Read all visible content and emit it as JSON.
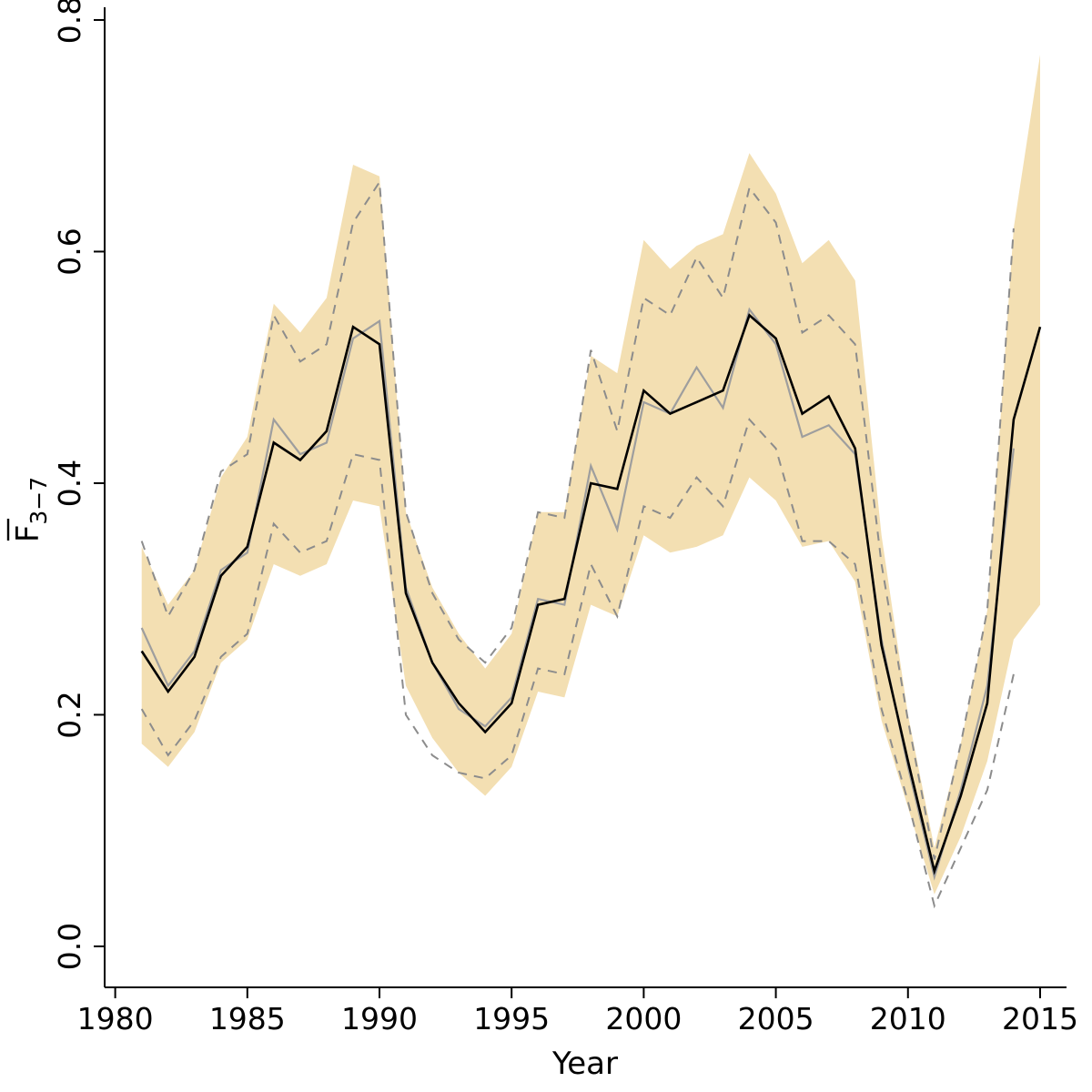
{
  "figure": {
    "background": "#ffffff"
  },
  "chart_data": {
    "type": "line",
    "title": "",
    "xlabel": "Year",
    "ylabel": {
      "main": "F",
      "sub": "3−7",
      "overline": true
    },
    "xlim": [
      1979.6,
      2016.0
    ],
    "ylim": [
      -0.0354,
      0.8094
    ],
    "grid": false,
    "legend": null,
    "x_ticks": [
      {
        "value": 1980,
        "label": "1980"
      },
      {
        "value": 1985,
        "label": "1985"
      },
      {
        "value": 1990,
        "label": "1990"
      },
      {
        "value": 1995,
        "label": "1995"
      },
      {
        "value": 2000,
        "label": "2000"
      },
      {
        "value": 2005,
        "label": "2005"
      },
      {
        "value": 2010,
        "label": "2010"
      },
      {
        "value": 2015,
        "label": "2015"
      }
    ],
    "y_ticks": [
      {
        "value": 0.0,
        "label": "0.0"
      },
      {
        "value": 0.2,
        "label": "0.2"
      },
      {
        "value": 0.4,
        "label": "0.4"
      },
      {
        "value": 0.6,
        "label": "0.6"
      },
      {
        "value": 0.8,
        "label": "0.8"
      }
    ],
    "band": {
      "name": "confidence-band",
      "color": "#f3dfb2",
      "x": [
        1981,
        1982,
        1983,
        1984,
        1985,
        1986,
        1987,
        1988,
        1989,
        1990,
        1991,
        1992,
        1993,
        1994,
        1995,
        1996,
        1997,
        1998,
        1999,
        2000,
        2001,
        2002,
        2003,
        2004,
        2005,
        2006,
        2007,
        2008,
        2009,
        2010,
        2011,
        2012,
        2013,
        2014,
        2015
      ],
      "upper": [
        0.345,
        0.295,
        0.325,
        0.405,
        0.44,
        0.555,
        0.53,
        0.56,
        0.675,
        0.665,
        0.375,
        0.31,
        0.27,
        0.24,
        0.27,
        0.375,
        0.375,
        0.51,
        0.495,
        0.61,
        0.585,
        0.605,
        0.615,
        0.685,
        0.65,
        0.59,
        0.61,
        0.575,
        0.355,
        0.2,
        0.085,
        0.175,
        0.29,
        0.62,
        0.77
      ],
      "lower": [
        0.175,
        0.155,
        0.185,
        0.245,
        0.265,
        0.33,
        0.32,
        0.33,
        0.385,
        0.38,
        0.225,
        0.18,
        0.15,
        0.13,
        0.155,
        0.22,
        0.215,
        0.295,
        0.285,
        0.355,
        0.34,
        0.345,
        0.355,
        0.405,
        0.385,
        0.345,
        0.35,
        0.315,
        0.195,
        0.12,
        0.045,
        0.095,
        0.16,
        0.265,
        0.295
      ]
    },
    "series": [
      {
        "name": "previous-upper-ci",
        "style": "dashed",
        "color": "#8c8c8c",
        "width": 2,
        "x": [
          1981,
          1982,
          1983,
          1984,
          1985,
          1986,
          1987,
          1988,
          1989,
          1990,
          1991,
          1992,
          1993,
          1994,
          1995,
          1996,
          1997,
          1998,
          1999,
          2000,
          2001,
          2002,
          2003,
          2004,
          2005,
          2006,
          2007,
          2008,
          2009,
          2010,
          2011,
          2012,
          2013,
          2014
        ],
        "values": [
          0.35,
          0.285,
          0.325,
          0.41,
          0.425,
          0.545,
          0.505,
          0.52,
          0.625,
          0.66,
          0.375,
          0.305,
          0.265,
          0.245,
          0.275,
          0.375,
          0.37,
          0.515,
          0.445,
          0.56,
          0.545,
          0.595,
          0.56,
          0.655,
          0.625,
          0.53,
          0.545,
          0.52,
          0.33,
          0.195,
          0.075,
          0.175,
          0.29,
          0.62
        ]
      },
      {
        "name": "previous-lower-ci",
        "style": "dashed",
        "color": "#8c8c8c",
        "width": 2,
        "x": [
          1981,
          1982,
          1983,
          1984,
          1985,
          1986,
          1987,
          1988,
          1989,
          1990,
          1991,
          1992,
          1993,
          1994,
          1995,
          1996,
          1997,
          1998,
          1999,
          2000,
          2001,
          2002,
          2003,
          2004,
          2005,
          2006,
          2007,
          2008,
          2009,
          2010,
          2011,
          2012,
          2013,
          2014
        ],
        "values": [
          0.205,
          0.165,
          0.195,
          0.25,
          0.27,
          0.365,
          0.34,
          0.35,
          0.425,
          0.42,
          0.2,
          0.165,
          0.15,
          0.145,
          0.165,
          0.24,
          0.235,
          0.33,
          0.285,
          0.38,
          0.37,
          0.405,
          0.38,
          0.455,
          0.43,
          0.35,
          0.35,
          0.33,
          0.205,
          0.125,
          0.035,
          0.085,
          0.135,
          0.235
        ]
      },
      {
        "name": "previous-assessment",
        "style": "solid",
        "color": "#9e9e9e",
        "width": 2.2,
        "x": [
          1981,
          1982,
          1983,
          1984,
          1985,
          1986,
          1987,
          1988,
          1989,
          1990,
          1991,
          1992,
          1993,
          1994,
          1995,
          1996,
          1997,
          1998,
          1999,
          2000,
          2001,
          2002,
          2003,
          2004,
          2005,
          2006,
          2007,
          2008,
          2009,
          2010,
          2011,
          2012,
          2013,
          2014
        ],
        "values": [
          0.275,
          0.225,
          0.255,
          0.325,
          0.34,
          0.455,
          0.425,
          0.435,
          0.525,
          0.54,
          0.31,
          0.245,
          0.205,
          0.19,
          0.215,
          0.3,
          0.295,
          0.415,
          0.36,
          0.47,
          0.46,
          0.5,
          0.465,
          0.55,
          0.52,
          0.44,
          0.45,
          0.425,
          0.265,
          0.155,
          0.06,
          0.135,
          0.225,
          0.43
        ]
      },
      {
        "name": "current-assessment",
        "style": "solid",
        "color": "#000000",
        "width": 2.6,
        "x": [
          1981,
          1982,
          1983,
          1984,
          1985,
          1986,
          1987,
          1988,
          1989,
          1990,
          1991,
          1992,
          1993,
          1994,
          1995,
          1996,
          1997,
          1998,
          1999,
          2000,
          2001,
          2002,
          2003,
          2004,
          2005,
          2006,
          2007,
          2008,
          2009,
          2010,
          2011,
          2012,
          2013,
          2014,
          2015
        ],
        "values": [
          0.255,
          0.22,
          0.25,
          0.32,
          0.345,
          0.435,
          0.42,
          0.445,
          0.535,
          0.52,
          0.305,
          0.245,
          0.21,
          0.185,
          0.21,
          0.295,
          0.3,
          0.4,
          0.395,
          0.48,
          0.46,
          0.47,
          0.48,
          0.545,
          0.525,
          0.46,
          0.475,
          0.43,
          0.26,
          0.16,
          0.065,
          0.13,
          0.21,
          0.455,
          0.535
        ]
      }
    ]
  }
}
